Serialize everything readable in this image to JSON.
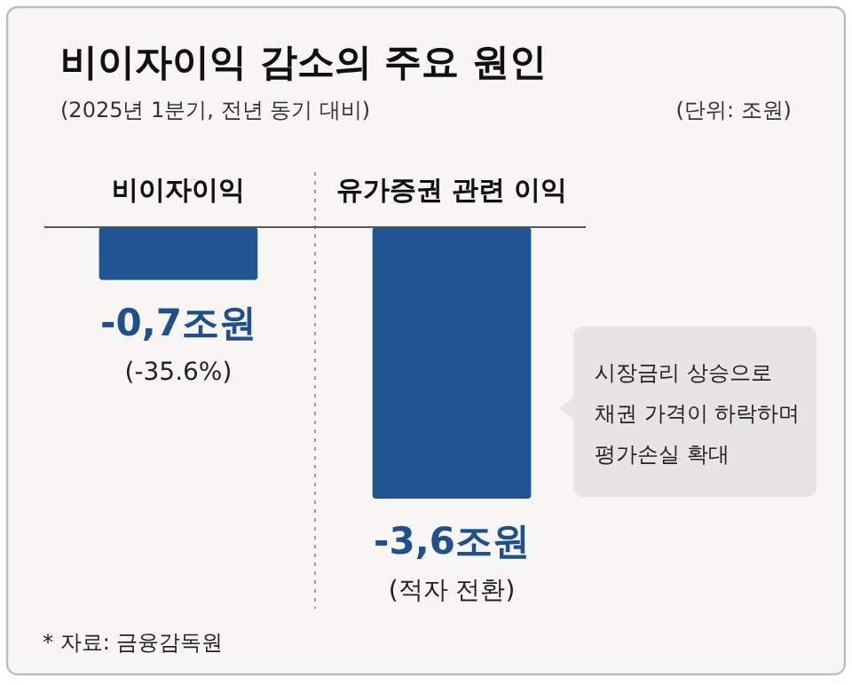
{
  "chart_data": {
    "type": "bar",
    "title": "비이자이익 감소의 주요 원인",
    "subtitle": "(2025년 1분기, 전년 동기 대비)",
    "categories": [
      "비이자이익",
      "유가증권 관련 이익"
    ],
    "values": [
      -0.7,
      -3.6
    ],
    "color": "#1f5590",
    "value_labels": [
      "-0,7조원",
      "-3,6조원"
    ],
    "annotations": [
      "(단위: 조원)",
      "* 자료: 금융감독원",
      "시장금리 상승으로\n채권 가격이 하락하며\n평가손실 확대",
      "(-35.6%)",
      "(적자 전환)"
    ]
  }
}
